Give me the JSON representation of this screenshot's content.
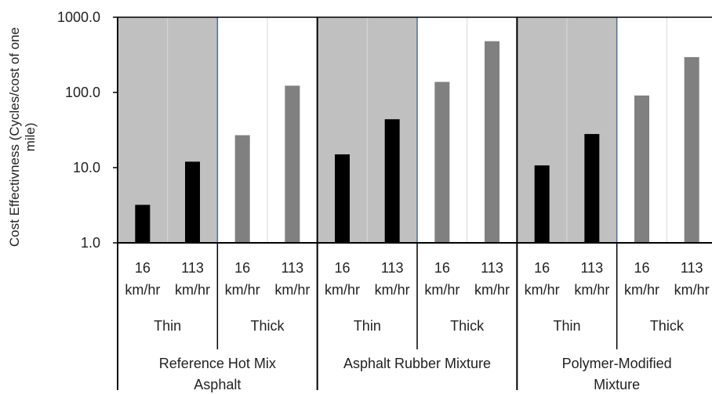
{
  "chart_data": {
    "type": "bar",
    "ylabel_line1": "Cost Effectivness (Cycles/cost of one",
    "ylabel_line2": "mile)",
    "y_scale": "log",
    "ylim": [
      1,
      1000
    ],
    "y_ticks": [
      "1.0",
      "10.0",
      "100.0",
      "1000.0"
    ],
    "y_tick_values": [
      1,
      10,
      100,
      1000
    ],
    "groups": [
      {
        "label_line1": "Reference Hot Mix",
        "label_line2": "Asphalt"
      },
      {
        "label_line1": "Asphalt Rubber Mixture",
        "label_line2": ""
      },
      {
        "label_line1": "Polymer-Modified",
        "label_line2": "Mixture"
      }
    ],
    "thickness_labels": [
      "Thin",
      "Thick"
    ],
    "speed_labels": [
      {
        "line1": "16",
        "line2": "km/hr"
      },
      {
        "line1": "113",
        "line2": "km/hr"
      }
    ],
    "bars": [
      {
        "group": 0,
        "thickness": 0,
        "speed": 0,
        "value": 3.2
      },
      {
        "group": 0,
        "thickness": 0,
        "speed": 1,
        "value": 12
      },
      {
        "group": 0,
        "thickness": 1,
        "speed": 0,
        "value": 27
      },
      {
        "group": 0,
        "thickness": 1,
        "speed": 1,
        "value": 123
      },
      {
        "group": 1,
        "thickness": 0,
        "speed": 0,
        "value": 15
      },
      {
        "group": 1,
        "thickness": 0,
        "speed": 1,
        "value": 44
      },
      {
        "group": 1,
        "thickness": 1,
        "speed": 0,
        "value": 138
      },
      {
        "group": 1,
        "thickness": 1,
        "speed": 1,
        "value": 480
      },
      {
        "group": 2,
        "thickness": 0,
        "speed": 0,
        "value": 10.7
      },
      {
        "group": 2,
        "thickness": 0,
        "speed": 1,
        "value": 28
      },
      {
        "group": 2,
        "thickness": 1,
        "speed": 0,
        "value": 91
      },
      {
        "group": 2,
        "thickness": 1,
        "speed": 1,
        "value": 295
      }
    ],
    "colors": {
      "thin_bar": "#000000",
      "thick_bar": "#808080",
      "thin_background": "#c0c0c0",
      "separator": "#4f6f9a"
    },
    "grid": true
  }
}
